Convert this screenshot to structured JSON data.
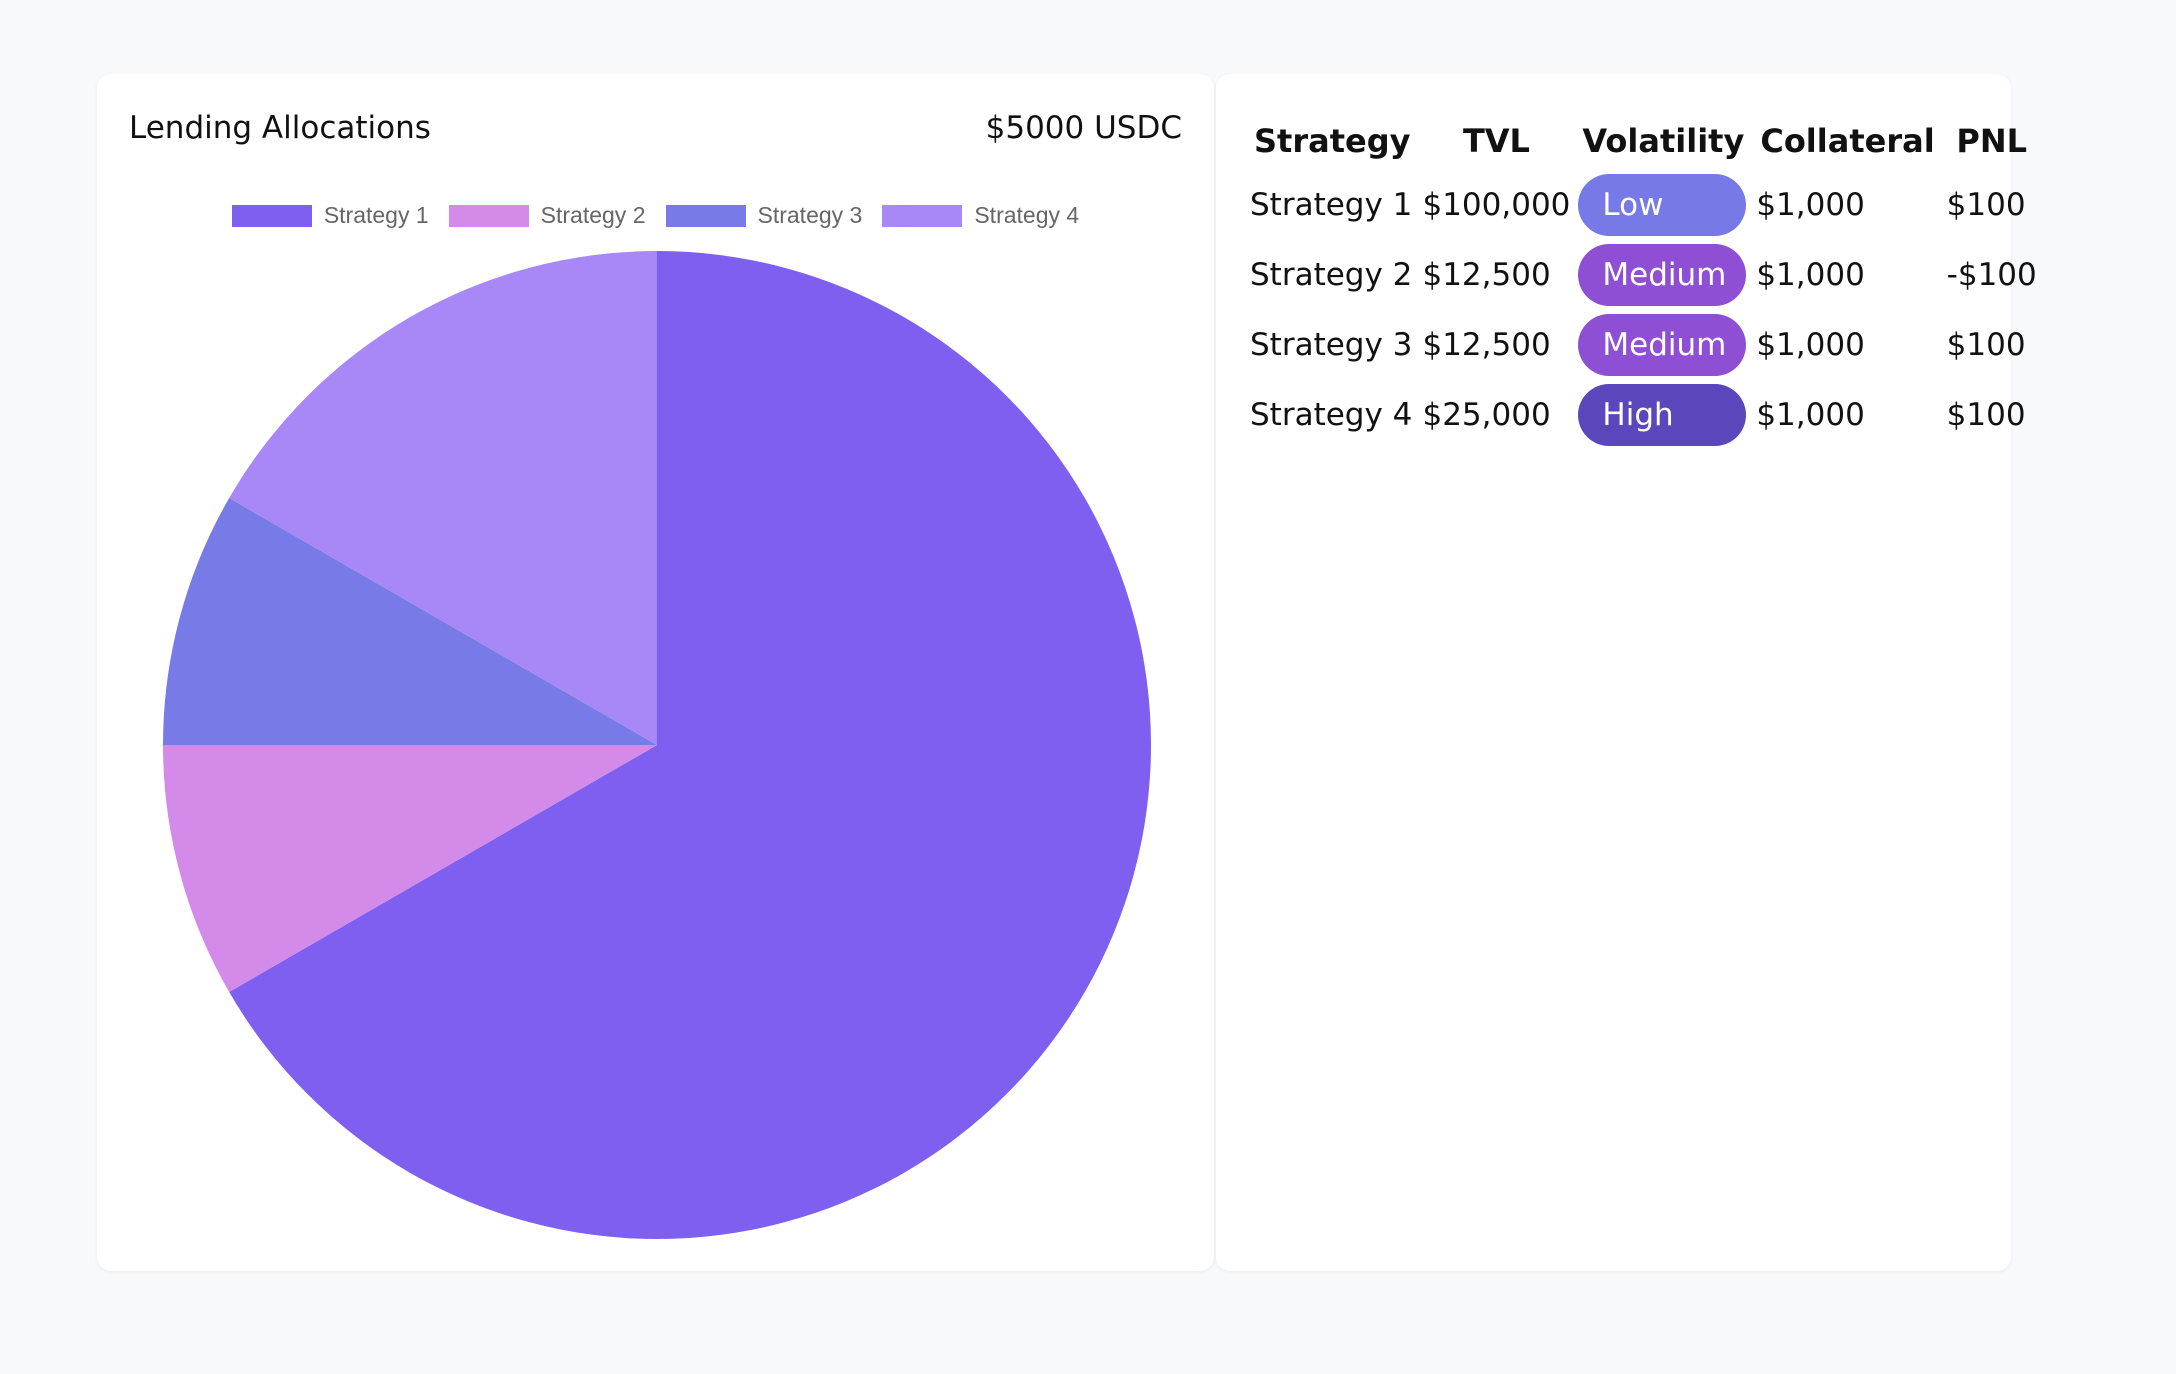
{
  "chart_card": {
    "title": "Lending Allocations",
    "amount": "$5000 USDC"
  },
  "chart_data": {
    "type": "pie",
    "categories": [
      "Strategy 1",
      "Strategy 2",
      "Strategy 3",
      "Strategy 4"
    ],
    "values": [
      100000,
      12500,
      12500,
      25000
    ],
    "colors": [
      "#7f5fef",
      "#d48ae9",
      "#787ae8",
      "#a887f7"
    ],
    "legend_position": "top"
  },
  "table": {
    "headers": [
      "Strategy",
      "TVL",
      "Volatility",
      "Collateral",
      "PNL"
    ],
    "rows": [
      {
        "strategy": "Strategy 1",
        "tvl": "$100,000",
        "volatility": "Low",
        "volatility_color": "#7679e6",
        "collateral": "$1,000",
        "pnl": "$100"
      },
      {
        "strategy": "Strategy 2",
        "tvl": "$12,500",
        "volatility": "Medium",
        "volatility_color": "#8e4fd4",
        "collateral": "$1,000",
        "pnl": "-$100"
      },
      {
        "strategy": "Strategy 3",
        "tvl": "$12,500",
        "volatility": "Medium",
        "volatility_color": "#8e4fd4",
        "collateral": "$1,000",
        "pnl": "$100"
      },
      {
        "strategy": "Strategy 4",
        "tvl": "$25,000",
        "volatility": "High",
        "volatility_color": "#5b46bc",
        "collateral": "$1,000",
        "pnl": "$100"
      }
    ]
  }
}
